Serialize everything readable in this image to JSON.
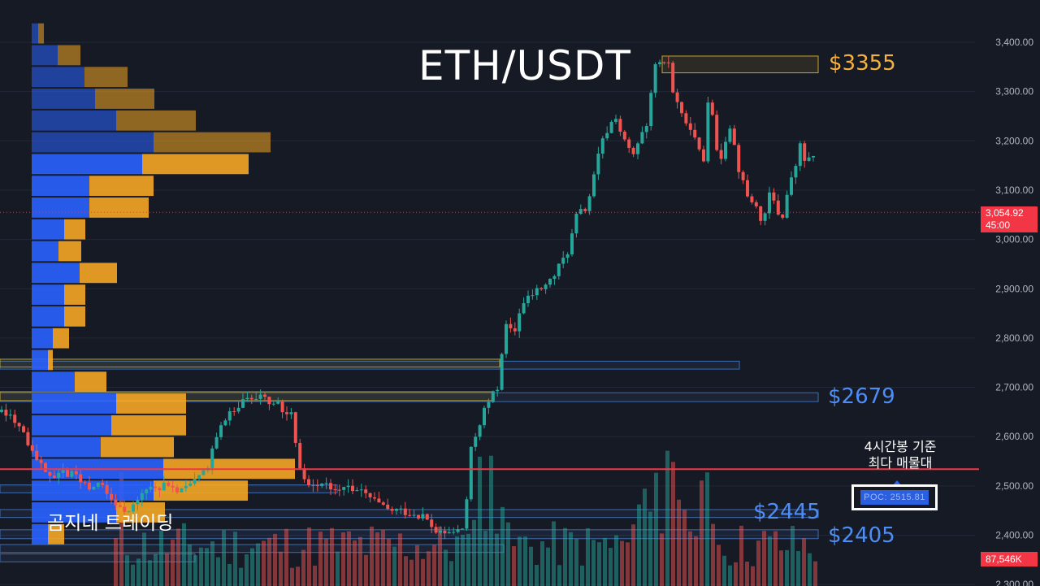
{
  "title": "ETH/USDT",
  "brand": "곰지네 트레이딩",
  "annotations": {
    "level_top": "$3355",
    "level_2679": "$2679",
    "level_2445": "$2445",
    "level_2405": "$2405",
    "poc_caption_line1": "4시간봉 기준",
    "poc_caption_line2": "최다 매물대",
    "poc_label": "POC: 2515.81"
  },
  "price_tag": {
    "price": "3,054.92",
    "countdown": "45:00"
  },
  "volume_tag": "87,546K",
  "colors": {
    "background": "#161a25",
    "up": "#26a69a",
    "down": "#ef5350",
    "vp_blue": "#2962ff",
    "vp_orange": "#f5a623",
    "poc_line": "#f23645",
    "level_gold": "#f5b13d",
    "level_blue": "#4d8df5"
  },
  "chart_data": {
    "type": "candlestick",
    "title": "ETH/USDT",
    "xlabel": "",
    "ylabel": "",
    "y_axis_ticks": [
      "3,400.00",
      "3,300.00",
      "3,200.00",
      "3,100.00",
      "3,000.00",
      "2,900.00",
      "2,800.00",
      "2,700.00",
      "2,600.00",
      "2,500.00",
      "2,400.00",
      "2,300.00"
    ],
    "ylim": [
      2290,
      3470
    ],
    "grid": true,
    "current_price": 3054.92,
    "poc": 2515.81,
    "key_levels": [
      3355,
      2679,
      2445,
      2405
    ],
    "volume_last": "87,546K",
    "path_points": [
      [
        0,
        2650
      ],
      [
        14,
        2640
      ],
      [
        26,
        2620
      ],
      [
        40,
        2570
      ],
      [
        52,
        2540
      ],
      [
        65,
        2520
      ],
      [
        80,
        2530
      ],
      [
        95,
        2515
      ],
      [
        110,
        2500
      ],
      [
        125,
        2505
      ],
      [
        140,
        2465
      ],
      [
        155,
        2450
      ],
      [
        165,
        2470
      ],
      [
        180,
        2490
      ],
      [
        195,
        2500
      ],
      [
        210,
        2495
      ],
      [
        225,
        2490
      ],
      [
        240,
        2510
      ],
      [
        255,
        2540
      ],
      [
        265,
        2600
      ],
      [
        280,
        2640
      ],
      [
        295,
        2670
      ],
      [
        310,
        2680
      ],
      [
        320,
        2690
      ],
      [
        330,
        2675
      ],
      [
        345,
        2660
      ],
      [
        360,
        2640
      ],
      [
        366,
        2560
      ],
      [
        375,
        2510
      ],
      [
        390,
        2505
      ],
      [
        405,
        2500
      ],
      [
        420,
        2500
      ],
      [
        440,
        2490
      ],
      [
        460,
        2470
      ],
      [
        475,
        2450
      ],
      [
        490,
        2450
      ],
      [
        505,
        2445
      ],
      [
        520,
        2440
      ],
      [
        530,
        2420
      ],
      [
        540,
        2400
      ],
      [
        555,
        2405
      ],
      [
        565,
        2410
      ],
      [
        572,
        2415
      ],
      [
        578,
        2560
      ],
      [
        585,
        2600
      ],
      [
        595,
        2650
      ],
      [
        605,
        2680
      ],
      [
        613,
        2700
      ],
      [
        618,
        2780
      ],
      [
        624,
        2830
      ],
      [
        632,
        2800
      ],
      [
        640,
        2860
      ],
      [
        650,
        2880
      ],
      [
        660,
        2895
      ],
      [
        670,
        2905
      ],
      [
        680,
        2920
      ],
      [
        690,
        2950
      ],
      [
        700,
        2980
      ],
      [
        710,
        3050
      ],
      [
        720,
        3060
      ],
      [
        728,
        3100
      ],
      [
        735,
        3160
      ],
      [
        742,
        3200
      ],
      [
        750,
        3230
      ],
      [
        758,
        3250
      ],
      [
        765,
        3210
      ],
      [
        772,
        3185
      ],
      [
        780,
        3170
      ],
      [
        788,
        3200
      ],
      [
        796,
        3240
      ],
      [
        802,
        3300
      ],
      [
        808,
        3370
      ],
      [
        815,
        3340
      ],
      [
        822,
        3370
      ],
      [
        828,
        3300
      ],
      [
        835,
        3270
      ],
      [
        842,
        3250
      ],
      [
        850,
        3230
      ],
      [
        858,
        3185
      ],
      [
        866,
        3160
      ],
      [
        872,
        3300
      ],
      [
        878,
        3250
      ],
      [
        885,
        3150
      ],
      [
        892,
        3200
      ],
      [
        900,
        3240
      ],
      [
        906,
        3160
      ],
      [
        912,
        3130
      ],
      [
        918,
        3090
      ],
      [
        925,
        3080
      ],
      [
        932,
        3060
      ],
      [
        940,
        3030
      ],
      [
        948,
        3100
      ],
      [
        955,
        3060
      ],
      [
        962,
        3040
      ],
      [
        970,
        3100
      ],
      [
        978,
        3140
      ],
      [
        985,
        3190
      ],
      [
        992,
        3150
      ],
      [
        1000,
        3180
      ],
      [
        1007,
        3055
      ]
    ],
    "volume_profile": {
      "note": "price-bin volume bars, blue = buy portion, orange = sell portion (relative units)",
      "bins_top_down": [
        {
          "blue": 8,
          "orange": 7
        },
        {
          "blue": 32,
          "orange": 28
        },
        {
          "blue": 65,
          "orange": 53
        },
        {
          "blue": 78,
          "orange": 73
        },
        {
          "blue": 104,
          "orange": 98
        },
        {
          "blue": 150,
          "orange": 144
        },
        {
          "blue": 136,
          "orange": 131
        },
        {
          "blue": 71,
          "orange": 79
        },
        {
          "blue": 71,
          "orange": 73
        },
        {
          "blue": 40,
          "orange": 26
        },
        {
          "blue": 33,
          "orange": 28
        },
        {
          "blue": 59,
          "orange": 46
        },
        {
          "blue": 40,
          "orange": 26
        },
        {
          "blue": 40,
          "orange": 26
        },
        {
          "blue": 26,
          "orange": 20
        },
        {
          "blue": 20,
          "orange": 6
        },
        {
          "blue": 53,
          "orange": 39
        },
        {
          "blue": 104,
          "orange": 86
        },
        {
          "blue": 98,
          "orange": 92
        },
        {
          "blue": 85,
          "orange": 90
        },
        {
          "blue": 162,
          "orange": 162
        },
        {
          "blue": 150,
          "orange": 116
        },
        {
          "blue": 104,
          "orange": 60
        },
        {
          "blue": 20,
          "orange": 20
        }
      ]
    }
  }
}
